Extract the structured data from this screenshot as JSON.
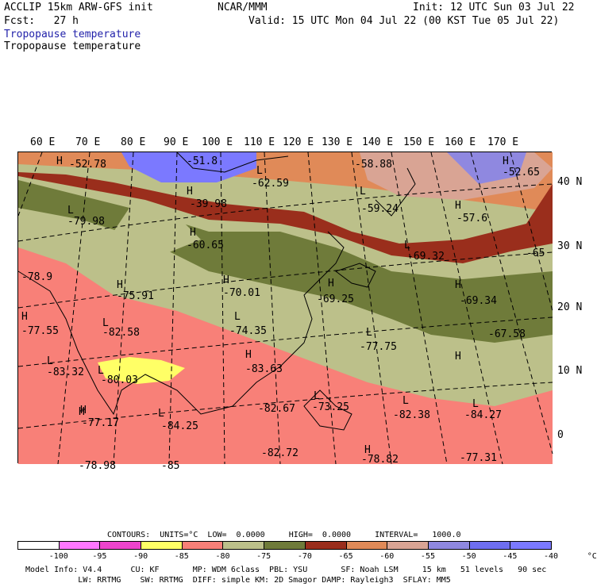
{
  "header": {
    "model": "ACCLIP 15km ARW-GFS init",
    "fcst": "Fcst:   27 h",
    "center": "NCAR/MMM",
    "init": "Init: 12 UTC Sun 03 Jul 22",
    "valid": "Valid: 15 UTC Mon 04 Jul 22 (00 KST Tue 05 Jul 22)",
    "field1": "Tropopause temperature",
    "field2": "Tropopause temperature"
  },
  "lon_labels": [
    "60 E",
    "70 E",
    "80 E",
    "90 E",
    "100 E",
    "110 E",
    "120 E",
    "130 E",
    "140 E",
    "150 E",
    "160 E",
    "170 E"
  ],
  "lat_labels": [
    "40 N",
    "30 N",
    "20 N",
    "10 N",
    "0"
  ],
  "contour_labels": [
    "H",
    "-52.78",
    "-51.8",
    "L",
    "-62.59",
    "-58.88",
    "H",
    "-52.65",
    "H",
    "-39.98",
    "L",
    "-59.24",
    "H",
    "-57.6",
    "L",
    "-79.98",
    "H",
    "-60.65",
    "L",
    "-69.32",
    "-65",
    "-78.9",
    "H",
    "-75.91",
    "H",
    "-70.01",
    "H",
    "-69.25",
    "H",
    "-69.34",
    "H",
    "-77.55",
    "L",
    "-82.58",
    "L",
    "-74.35",
    "-67.58",
    "L",
    "-77.75",
    "L",
    "-83.32",
    "L",
    "-80.03",
    "H",
    "-83.63",
    "H",
    "H",
    "-82.67",
    "L",
    "-73.25",
    "L",
    "-82.38",
    "L",
    "-84.27",
    "H",
    "-77.17",
    "-84.25",
    "L",
    "-82.72",
    "H",
    "-78.82",
    "-77.31",
    "-78.98",
    "-85"
  ],
  "legend": {
    "contours": "CONTOURS:  UNITS=°C  LOW=  0.0000     HIGH=  0.0000     INTERVAL=   1000.0",
    "ticks": [
      "-100",
      "-95",
      "-90",
      "-85",
      "-80",
      "-75",
      "-70",
      "-65",
      "-60",
      "-55",
      "-50",
      "-45",
      "-40",
      "°C"
    ],
    "colors": [
      "#ffffff",
      "#ff77ff",
      "#ee44cc",
      "#ffff66",
      "#f88078",
      "#bcc08a",
      "#6f7b3a",
      "#9a2e1c",
      "#e08a58",
      "#d9a494",
      "#8f88e0",
      "#6e6ef0",
      "#7b79ff"
    ]
  },
  "footer": {
    "line1": "Model Info: V4.4      CU: KF       MP: WDM 6class  PBL: YSU       SF: Noah LSM     15 km   51 levels   90 sec",
    "line2": "           LW: RRTMG    SW: RRTMG  DIFF: simple KM: 2D Smagor DAMP: Rayleigh3  SFLAY: MM5"
  }
}
